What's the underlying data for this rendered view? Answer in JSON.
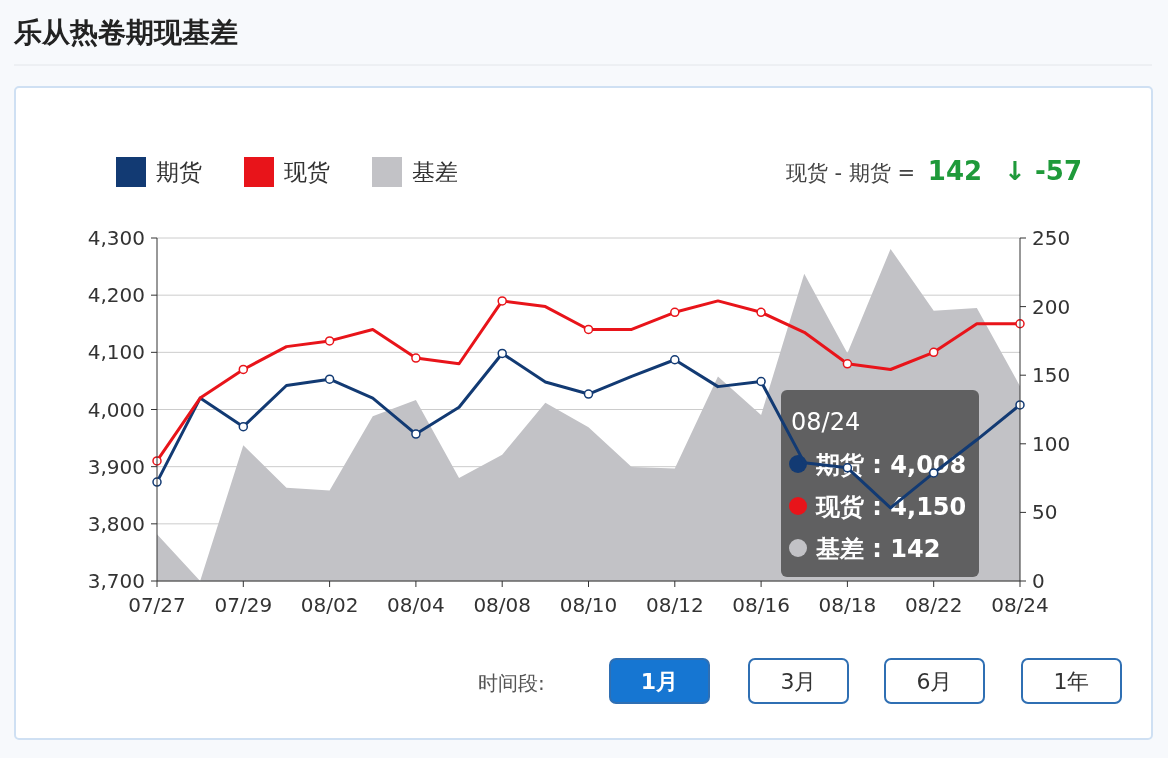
{
  "chart_data": {
    "type": "line",
    "title": "乐从热卷期现基差",
    "categories": [
      "07/27",
      null,
      "07/29",
      null,
      "08/02",
      null,
      "08/04",
      null,
      "08/08",
      null,
      "08/10",
      null,
      "08/12",
      null,
      "08/16",
      null,
      "08/18",
      null,
      "08/22",
      null,
      "08/24"
    ],
    "series": [
      {
        "name": "期货",
        "color": "#123a73",
        "marker": "circle",
        "values": [
          3873,
          4020,
          3970,
          4042,
          4053,
          4020,
          3957,
          4004,
          4098,
          4048,
          4027,
          4058,
          4087,
          4040,
          4049,
          3907,
          3898,
          3828,
          3889,
          3947,
          4008
        ]
      },
      {
        "name": "现货",
        "color": "#e8141a",
        "marker": "circle",
        "values": [
          3910,
          4020,
          4070,
          4110,
          4120,
          4140,
          4090,
          4080,
          4190,
          4180,
          4140,
          4140,
          4170,
          4190,
          4170,
          4135,
          4080,
          4070,
          4100,
          4150,
          4150
        ]
      },
      {
        "name": "基差",
        "type": "area",
        "axis": "y2",
        "color": "#c2c2c6",
        "values": [
          34,
          0,
          99,
          68,
          66,
          120,
          132,
          75,
          92,
          130,
          112,
          83,
          82,
          149,
          121,
          224,
          166,
          242,
          197,
          199,
          142
        ]
      }
    ],
    "ylim": [
      3700,
      4300
    ],
    "yticks": [
      {
        "value": 3700,
        "label": "3,700"
      },
      {
        "value": 3800,
        "label": "3,800"
      },
      {
        "value": 3900,
        "label": "3,900"
      },
      {
        "value": 4000,
        "label": "4,000"
      },
      {
        "value": 4100,
        "label": "4,100"
      },
      {
        "value": 4200,
        "label": "4,200"
      },
      {
        "value": 4300,
        "label": "4,300"
      }
    ],
    "y2lim": [
      0,
      250
    ],
    "y2ticks": [
      0,
      50,
      100,
      150,
      200,
      250
    ],
    "grid": "y",
    "legend": "top left",
    "line_style": "solid",
    "annotations": [
      "现货 - 期货 =",
      "142",
      "↓ -57",
      "08/24",
      "期货 : 4,008",
      "现货 : 4,150",
      "基差 : 142",
      "时间段:",
      "1月",
      "3月",
      "6月",
      "1年"
    ]
  }
}
